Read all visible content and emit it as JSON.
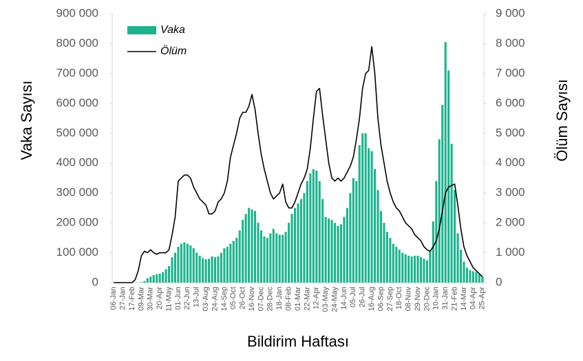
{
  "chart_data": {
    "type": "bar-line",
    "x_label": "Bildirim Haftası",
    "y_label": "Vaka Sayısı",
    "y2_label": "Ölüm Sayısı",
    "legend": "upper left",
    "grid": false,
    "categories": [
      "06-Jan",
      null,
      null,
      "27-Jan",
      null,
      null,
      "17-Feb",
      null,
      null,
      "09-Mar",
      null,
      null,
      "30-Mar",
      null,
      null,
      "20-Apr",
      null,
      null,
      "11-May",
      null,
      null,
      "01-Jun",
      null,
      null,
      "22-Jun",
      null,
      null,
      "13-Jul",
      null,
      null,
      "03-Aug",
      null,
      null,
      "24-Aug",
      null,
      null,
      "14-Sep",
      null,
      null,
      "05-Oct",
      null,
      null,
      "26-Oct",
      null,
      null,
      "16-Nov",
      null,
      null,
      "07-Dec",
      null,
      null,
      "28-Dec",
      null,
      null,
      "18-Jan",
      null,
      null,
      "08-Feb",
      null,
      null,
      "01-Mar",
      null,
      null,
      "22-Mar",
      null,
      null,
      "12-Apr",
      null,
      null,
      "03-May",
      null,
      null,
      "24-May",
      null,
      null,
      "14-Jun",
      null,
      null,
      "05-Jul",
      null,
      null,
      "26-Jul",
      null,
      null,
      "16-Aug",
      null,
      null,
      "06-Sep",
      null,
      null,
      "27-Sep",
      null,
      null,
      "18-Oct",
      null,
      null,
      "08-Nov",
      null,
      null,
      "29-Nov",
      null,
      null,
      "20-Dec",
      null,
      null,
      "10-Jan",
      null,
      null,
      "31-Jan",
      null,
      null,
      "21-Feb",
      null,
      null,
      "14-Mar",
      null,
      null,
      "04-Apr",
      null,
      null,
      "25-Apr"
    ],
    "series": [
      {
        "name": "Vaka",
        "type": "bar",
        "color": "#1db38f",
        "values": [
          0,
          0,
          0,
          0,
          0,
          0,
          0,
          0,
          0,
          2000,
          5000,
          15000,
          20000,
          25000,
          28000,
          30000,
          35000,
          45000,
          55000,
          85000,
          100000,
          120000,
          130000,
          135000,
          130000,
          125000,
          115000,
          100000,
          90000,
          82000,
          78000,
          80000,
          88000,
          85000,
          88000,
          100000,
          115000,
          120000,
          130000,
          140000,
          150000,
          175000,
          210000,
          230000,
          250000,
          245000,
          240000,
          200000,
          175000,
          155000,
          150000,
          165000,
          180000,
          165000,
          160000,
          160000,
          170000,
          200000,
          230000,
          250000,
          265000,
          280000,
          300000,
          340000,
          365000,
          380000,
          375000,
          340000,
          280000,
          220000,
          215000,
          210000,
          200000,
          190000,
          195000,
          220000,
          250000,
          300000,
          350000,
          340000,
          460000,
          500000,
          500000,
          450000,
          440000,
          380000,
          310000,
          240000,
          200000,
          170000,
          150000,
          130000,
          120000,
          110000,
          100000,
          95000,
          90000,
          88000,
          90000,
          90000,
          85000,
          80000,
          75000,
          105000,
          205000,
          340000,
          480000,
          595000,
          805000,
          710000,
          465000,
          310000,
          165000,
          110000,
          70000,
          50000,
          42000,
          38000,
          35000,
          28000,
          20000
        ]
      },
      {
        "name": "Ölüm",
        "type": "line",
        "axis": "y2",
        "color": "#000000",
        "values": [
          0,
          0,
          0,
          0,
          0,
          0,
          0,
          100,
          400,
          900,
          1050,
          1000,
          1100,
          1000,
          950,
          1000,
          1000,
          1000,
          1100,
          1600,
          2200,
          3400,
          3500,
          3600,
          3600,
          3500,
          3200,
          3000,
          2800,
          2700,
          2600,
          2300,
          2300,
          2400,
          2700,
          2800,
          3000,
          3400,
          4200,
          4600,
          5000,
          5500,
          5700,
          5700,
          5900,
          6300,
          5800,
          5000,
          4300,
          3800,
          3400,
          3000,
          2800,
          2900,
          3000,
          3300,
          2700,
          2500,
          2500,
          2700,
          3000,
          3300,
          3500,
          3800,
          4500,
          5500,
          6400,
          6500,
          5600,
          4800,
          4000,
          3500,
          3400,
          3500,
          3400,
          3500,
          3700,
          3900,
          4200,
          4800,
          5500,
          6500,
          7000,
          7100,
          7900,
          7000,
          5500,
          4600,
          4000,
          3400,
          3000,
          2700,
          2500,
          2400,
          2200,
          2000,
          1900,
          1800,
          1600,
          1500,
          1400,
          1200,
          1100,
          1050,
          1200,
          1400,
          1800,
          2400,
          3000,
          3200,
          3250,
          3300,
          2600,
          1800,
          1200,
          900,
          700,
          500,
          400,
          300,
          200
        ]
      }
    ],
    "ylim": [
      0,
      900000
    ],
    "yticks": [
      0,
      {
        "value": 100000,
        "label": "100 000"
      },
      {
        "value": 200000,
        "label": "200 000"
      },
      {
        "value": 300000,
        "label": "300 000"
      },
      {
        "value": 400000,
        "label": "400 000"
      },
      {
        "value": 500000,
        "label": "500 000"
      },
      {
        "value": 600000,
        "label": "600 000"
      },
      {
        "value": 700000,
        "label": "700 000"
      },
      {
        "value": 800000,
        "label": "800 000"
      },
      {
        "value": 900000,
        "label": "900 000"
      }
    ],
    "y2lim": [
      0,
      9000
    ],
    "y2ticks": [
      0,
      {
        "value": 1000,
        "label": "1 000"
      },
      {
        "value": 2000,
        "label": "2 000"
      },
      {
        "value": 3000,
        "label": "3 000"
      },
      {
        "value": 4000,
        "label": "4 000"
      },
      {
        "value": 5000,
        "label": "5 000"
      },
      {
        "value": 6000,
        "label": "6 000"
      },
      {
        "value": 7000,
        "label": "7 000"
      },
      {
        "value": 8000,
        "label": "8 000"
      },
      {
        "value": 9000,
        "label": "9 000"
      }
    ]
  }
}
